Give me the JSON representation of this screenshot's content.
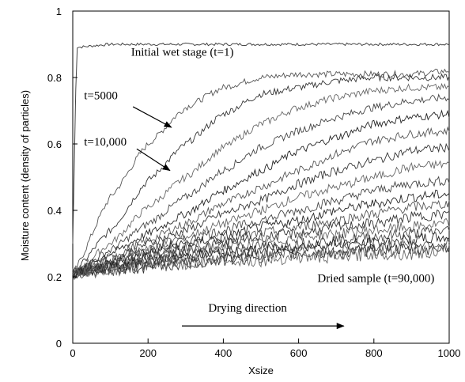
{
  "chart_data": {
    "type": "line",
    "xlabel": "Xsize",
    "ylabel": "Moisture content (density of particles)",
    "xlim": [
      0,
      1000
    ],
    "ylim": [
      0,
      1
    ],
    "x_ticks": [
      0,
      200,
      400,
      600,
      800,
      1000
    ],
    "y_ticks": [
      0,
      0.2,
      0.4,
      0.6,
      0.8,
      1
    ],
    "grid": false,
    "legend": "none",
    "x": [
      0,
      100,
      200,
      300,
      400,
      500,
      600,
      700,
      800,
      900,
      1000
    ],
    "series": [
      {
        "values": [
          0.89,
          0.9,
          0.9,
          0.9,
          0.9,
          0.9,
          0.9,
          0.9,
          0.9,
          0.9,
          0.9
        ]
      },
      {
        "values": [
          0.21,
          0.44,
          0.6,
          0.71,
          0.77,
          0.8,
          0.81,
          0.81,
          0.81,
          0.81,
          0.82
        ]
      },
      {
        "values": [
          0.21,
          0.34,
          0.49,
          0.6,
          0.69,
          0.75,
          0.77,
          0.79,
          0.8,
          0.8,
          0.8
        ]
      },
      {
        "values": [
          0.21,
          0.3,
          0.41,
          0.5,
          0.59,
          0.66,
          0.71,
          0.74,
          0.76,
          0.77,
          0.77
        ]
      },
      {
        "values": [
          0.21,
          0.28,
          0.36,
          0.44,
          0.52,
          0.59,
          0.64,
          0.68,
          0.71,
          0.73,
          0.74
        ]
      },
      {
        "values": [
          0.21,
          0.27,
          0.33,
          0.39,
          0.46,
          0.52,
          0.58,
          0.62,
          0.66,
          0.68,
          0.69
        ]
      },
      {
        "values": [
          0.21,
          0.26,
          0.31,
          0.36,
          0.42,
          0.47,
          0.52,
          0.57,
          0.61,
          0.63,
          0.64
        ]
      },
      {
        "values": [
          0.21,
          0.25,
          0.3,
          0.34,
          0.39,
          0.43,
          0.48,
          0.52,
          0.55,
          0.58,
          0.59
        ]
      },
      {
        "values": [
          0.21,
          0.25,
          0.29,
          0.32,
          0.36,
          0.4,
          0.44,
          0.47,
          0.5,
          0.53,
          0.54
        ]
      },
      {
        "values": [
          0.21,
          0.24,
          0.28,
          0.31,
          0.34,
          0.37,
          0.4,
          0.43,
          0.46,
          0.48,
          0.49
        ]
      },
      {
        "values": [
          0.21,
          0.24,
          0.27,
          0.3,
          0.32,
          0.35,
          0.37,
          0.4,
          0.42,
          0.44,
          0.45
        ]
      },
      {
        "values": [
          0.21,
          0.24,
          0.26,
          0.29,
          0.31,
          0.33,
          0.35,
          0.37,
          0.39,
          0.41,
          0.42
        ]
      },
      {
        "values": [
          0.21,
          0.23,
          0.26,
          0.28,
          0.3,
          0.32,
          0.33,
          0.35,
          0.36,
          0.38,
          0.39
        ]
      },
      {
        "values": [
          0.21,
          0.23,
          0.25,
          0.27,
          0.29,
          0.3,
          0.32,
          0.33,
          0.34,
          0.35,
          0.36
        ]
      },
      {
        "values": [
          0.21,
          0.23,
          0.25,
          0.26,
          0.28,
          0.29,
          0.3,
          0.31,
          0.32,
          0.33,
          0.34
        ]
      },
      {
        "values": [
          0.21,
          0.23,
          0.24,
          0.26,
          0.27,
          0.28,
          0.29,
          0.3,
          0.3,
          0.31,
          0.32
        ]
      },
      {
        "values": [
          0.21,
          0.22,
          0.24,
          0.25,
          0.26,
          0.27,
          0.28,
          0.28,
          0.29,
          0.3,
          0.3
        ]
      },
      {
        "values": [
          0.21,
          0.22,
          0.23,
          0.24,
          0.25,
          0.26,
          0.27,
          0.27,
          0.28,
          0.28,
          0.29
        ]
      },
      {
        "values": [
          0.21,
          0.22,
          0.23,
          0.24,
          0.25,
          0.25,
          0.26,
          0.26,
          0.27,
          0.27,
          0.28
        ]
      }
    ],
    "annotations": [
      {
        "text": "Initial wet stage (t=1)",
        "x": 155,
        "y": 0.865
      },
      {
        "text": "t=5000",
        "x": 30,
        "y": 0.735
      },
      {
        "text": "t=10,000",
        "x": 30,
        "y": 0.595
      },
      {
        "text": "Dried sample (t=90,000)",
        "x": 650,
        "y": 0.185
      },
      {
        "text": "Drying direction",
        "x": 360,
        "y": 0.095
      }
    ],
    "arrows": [
      {
        "from": [
          160,
          0.712
        ],
        "to": [
          262,
          0.65
        ]
      },
      {
        "from": [
          170,
          0.585
        ],
        "to": [
          258,
          0.52
        ]
      },
      {
        "from": [
          290,
          0.052
        ],
        "to": [
          720,
          0.052
        ]
      }
    ]
  }
}
